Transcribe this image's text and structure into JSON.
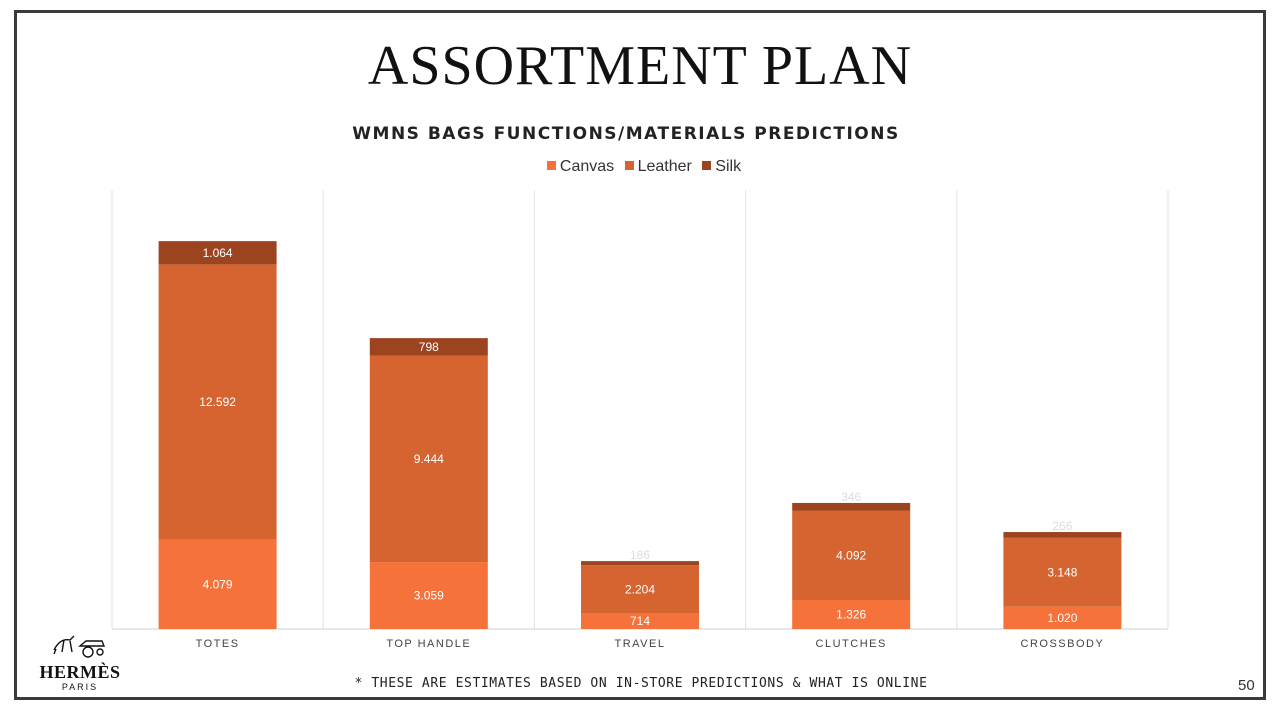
{
  "page": {
    "title": "ASSORTMENT PLAN",
    "footnote": "* THESE ARE ESTIMATES BASED ON IN-STORE PREDICTIONS & WHAT IS ONLINE",
    "page_number": "50",
    "logo": {
      "name": "HERMÈS",
      "sub": "PARIS",
      "icon": "horse-carriage-icon"
    }
  },
  "colors": {
    "canvas": "#F5723A",
    "leather": "#D66430",
    "silk": "#9C4420"
  },
  "chart_data": {
    "type": "bar",
    "stacked": true,
    "title": "WMNS BAGS FUNCTIONS/MATERIALS PREDICTIONS",
    "categories": [
      "TOTES",
      "TOP HANDLE",
      "TRAVEL",
      "CLUTCHES",
      "CROSSBODY"
    ],
    "series": [
      {
        "name": "Canvas",
        "values": [
          4079,
          3059,
          714,
          1326,
          1020
        ],
        "labels": [
          "4.079",
          "3.059",
          "714",
          "1.326",
          "1.020"
        ]
      },
      {
        "name": "Leather",
        "values": [
          12592,
          9444,
          2204,
          4092,
          3148
        ],
        "labels": [
          "12.592",
          "9.444",
          "2.204",
          "4.092",
          "3.148"
        ]
      },
      {
        "name": "Silk",
        "values": [
          1064,
          798,
          186,
          346,
          266
        ],
        "labels": [
          "1.064",
          "798",
          "186",
          "346",
          "266"
        ]
      }
    ],
    "ylim": [
      0,
      20000
    ],
    "grid": "vertical",
    "legend_position": "top"
  }
}
